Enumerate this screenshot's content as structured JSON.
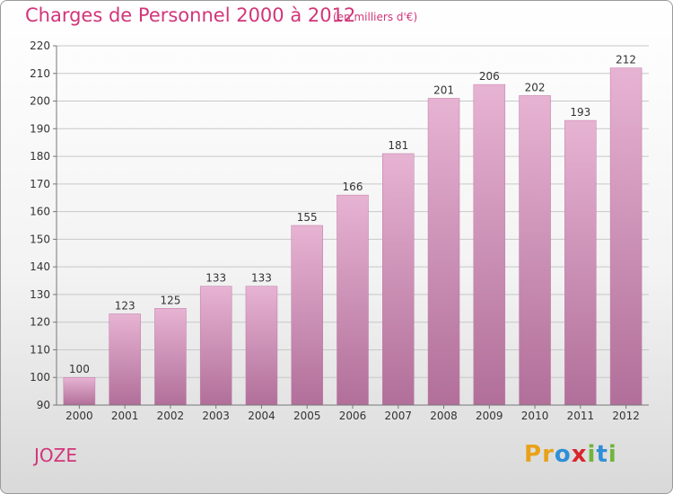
{
  "header": {
    "title": "Charges de Personnel 2000 à 2012",
    "subtitle": "(en milliers d'€)"
  },
  "footer": {
    "place": "JOZE",
    "logo_letters": [
      "P",
      "r",
      "o",
      "x",
      "i",
      "t",
      "i"
    ],
    "logo_colors": [
      "#e8a21a",
      "#e8a21a",
      "#2f8fd6",
      "#d8262c",
      "#6fb53a",
      "#2f8fd6",
      "#6fb53a"
    ]
  },
  "colors": {
    "bar": "#d48cb6",
    "bar_top": "#e7b3d3",
    "bar_bottom": "#b16f99",
    "grid": "#c8c8c8",
    "axis": "#777777"
  },
  "chart_data": {
    "type": "bar",
    "title": "Charges de Personnel 2000 à 2012",
    "subtitle": "(en milliers d'€)",
    "categories": [
      "2000",
      "2001",
      "2002",
      "2003",
      "2004",
      "2005",
      "2006",
      "2007",
      "2008",
      "2009",
      "2010",
      "2011",
      "2012"
    ],
    "values": [
      100,
      123,
      125,
      133,
      133,
      155,
      166,
      181,
      201,
      206,
      202,
      193,
      212
    ],
    "ylim": [
      90,
      220
    ],
    "yticks": [
      90,
      100,
      110,
      120,
      130,
      140,
      150,
      160,
      170,
      180,
      190,
      200,
      210,
      220
    ],
    "grid": true,
    "xlabel": "",
    "ylabel": ""
  }
}
